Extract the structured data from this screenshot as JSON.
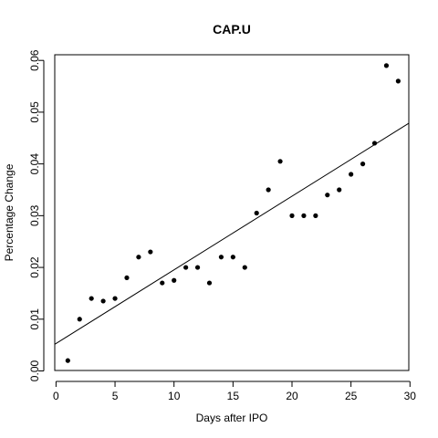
{
  "chart_data": {
    "type": "scatter",
    "title": "CAP.U",
    "xlabel": "Days after IPO",
    "ylabel": "Percentage Change",
    "xlim": [
      0,
      30
    ],
    "ylim": [
      0,
      0.06
    ],
    "x_ticks": [
      0,
      5,
      10,
      15,
      20,
      25,
      30
    ],
    "x_tick_labels": [
      "0",
      "5",
      "10",
      "15",
      "20",
      "25",
      "30"
    ],
    "y_ticks": [
      0.0,
      0.01,
      0.02,
      0.03,
      0.04,
      0.05,
      0.06
    ],
    "y_tick_labels": [
      "0.00",
      "0.01",
      "0.02",
      "0.03",
      "0.04",
      "0.05",
      "0.06"
    ],
    "grid": false,
    "points": [
      {
        "x": 1,
        "y": 0.002
      },
      {
        "x": 2,
        "y": 0.01
      },
      {
        "x": 3,
        "y": 0.014
      },
      {
        "x": 4,
        "y": 0.0135
      },
      {
        "x": 5,
        "y": 0.014
      },
      {
        "x": 6,
        "y": 0.018
      },
      {
        "x": 7,
        "y": 0.022
      },
      {
        "x": 8,
        "y": 0.023
      },
      {
        "x": 9,
        "y": 0.017
      },
      {
        "x": 10,
        "y": 0.0175
      },
      {
        "x": 11,
        "y": 0.02
      },
      {
        "x": 12,
        "y": 0.02
      },
      {
        "x": 13,
        "y": 0.017
      },
      {
        "x": 14,
        "y": 0.022
      },
      {
        "x": 15,
        "y": 0.022
      },
      {
        "x": 16,
        "y": 0.02
      },
      {
        "x": 17,
        "y": 0.0305
      },
      {
        "x": 18,
        "y": 0.035
      },
      {
        "x": 19,
        "y": 0.0405
      },
      {
        "x": 20,
        "y": 0.03
      },
      {
        "x": 21,
        "y": 0.03
      },
      {
        "x": 22,
        "y": 0.03
      },
      {
        "x": 23,
        "y": 0.034
      },
      {
        "x": 24,
        "y": 0.035
      },
      {
        "x": 25,
        "y": 0.038
      },
      {
        "x": 26,
        "y": 0.04
      },
      {
        "x": 27,
        "y": 0.044
      },
      {
        "x": 28,
        "y": 0.059
      },
      {
        "x": 29,
        "y": 0.056
      }
    ],
    "fit_line": {
      "x": [
        0,
        30
      ],
      "y": [
        0.0053,
        0.048
      ]
    }
  }
}
